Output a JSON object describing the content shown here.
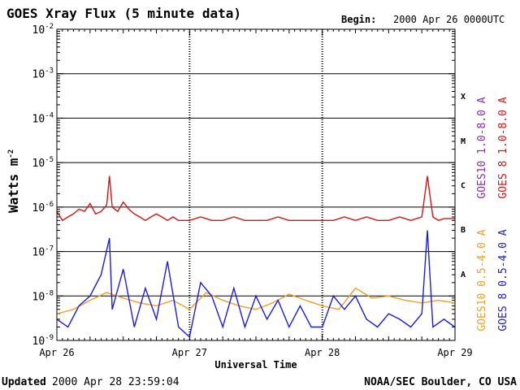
{
  "header": {
    "title": "GOES Xray Flux (5 minute data)",
    "begin_label": "Begin:",
    "begin_value": "2000 Apr 26 0000UTC"
  },
  "footer": {
    "updated_label": "Updated",
    "updated_value": "2000 Apr 28 23:59:04",
    "credit": "NOAA/SEC Boulder, CO USA"
  },
  "chart_data": {
    "type": "line",
    "title": "GOES Xray Flux (5 minute data)",
    "xlabel": "Universal Time",
    "ylabel": "Watts m",
    "ylabel_sup": "-2",
    "y_scale": "log",
    "ylim": [
      1e-09,
      0.01
    ],
    "xlim": [
      "2000-04-26",
      "2000-04-29"
    ],
    "x_ticks": [
      "Apr 26",
      "Apr 27",
      "Apr 28",
      "Apr 29"
    ],
    "y_ticks": [
      {
        "base": "10",
        "exp": "-9"
      },
      {
        "base": "10",
        "exp": "-8"
      },
      {
        "base": "10",
        "exp": "-7"
      },
      {
        "base": "10",
        "exp": "-6"
      },
      {
        "base": "10",
        "exp": "-5"
      },
      {
        "base": "10",
        "exp": "-4"
      },
      {
        "base": "10",
        "exp": "-3"
      },
      {
        "base": "10",
        "exp": "-2"
      }
    ],
    "flare_classes": [
      "A",
      "B",
      "C",
      "M",
      "X"
    ],
    "legend": [
      {
        "name": "GOES10 1.0-8.0 A",
        "color": "#8b2fa8"
      },
      {
        "name": "GOES 8 1.0-8.0 A",
        "color": "#e01010"
      },
      {
        "name": "GOES10 0.5-4.0 A",
        "color": "#f0a020"
      },
      {
        "name": "GOES 8 0.5-4.0 A",
        "color": "#1a1aee"
      }
    ],
    "series": [
      {
        "name": "GOES 8 1.0-8.0 A",
        "color": "#e01010",
        "x": [
          "2000-04-26 00:00",
          "2000-04-26 01:00",
          "2000-04-26 02:00",
          "2000-04-26 03:00",
          "2000-04-26 04:00",
          "2000-04-26 05:00",
          "2000-04-26 06:00",
          "2000-04-26 07:00",
          "2000-04-26 08:00",
          "2000-04-26 09:00",
          "2000-04-26 09:30",
          "2000-04-26 10:00",
          "2000-04-26 11:00",
          "2000-04-26 12:00",
          "2000-04-26 13:00",
          "2000-04-26 14:00",
          "2000-04-26 15:00",
          "2000-04-26 16:00",
          "2000-04-26 17:00",
          "2000-04-26 18:00",
          "2000-04-26 19:00",
          "2000-04-26 20:00",
          "2000-04-26 21:00",
          "2000-04-26 22:00",
          "2000-04-26 23:59",
          "2000-04-27 00:00",
          "2000-04-27 02:00",
          "2000-04-27 04:00",
          "2000-04-27 06:00",
          "2000-04-27 08:00",
          "2000-04-27 10:00",
          "2000-04-27 12:00",
          "2000-04-27 14:00",
          "2000-04-27 16:00",
          "2000-04-27 18:00",
          "2000-04-27 20:00",
          "2000-04-27 22:00",
          "2000-04-27 23:59",
          "2000-04-28 00:00",
          "2000-04-28 02:00",
          "2000-04-28 04:00",
          "2000-04-28 06:00",
          "2000-04-28 08:00",
          "2000-04-28 10:00",
          "2000-04-28 12:00",
          "2000-04-28 14:00",
          "2000-04-28 16:00",
          "2000-04-28 18:00",
          "2000-04-28 19:00",
          "2000-04-28 20:00",
          "2000-04-28 21:00",
          "2000-04-28 22:00",
          "2000-04-28 23:59"
        ],
        "y": [
          8e-07,
          5e-07,
          6e-07,
          7e-07,
          9e-07,
          8e-07,
          1.2e-06,
          7e-07,
          8e-07,
          1.1e-06,
          5e-06,
          1e-06,
          8e-07,
          1.3e-06,
          9e-07,
          7e-07,
          6e-07,
          5e-07,
          6e-07,
          7e-07,
          6e-07,
          5e-07,
          6e-07,
          5e-07,
          5e-07,
          5e-07,
          6e-07,
          5e-07,
          5e-07,
          6e-07,
          5e-07,
          5e-07,
          5e-07,
          6e-07,
          5e-07,
          5e-07,
          5e-07,
          5e-07,
          5e-07,
          5e-07,
          6e-07,
          5e-07,
          6e-07,
          5e-07,
          5e-07,
          6e-07,
          5e-07,
          6e-07,
          5e-06,
          6e-07,
          5e-07,
          5.5e-07,
          5.5e-07
        ]
      },
      {
        "name": "GOES10 0.5-4.0 A",
        "color": "#f0a020",
        "x": [
          "2000-04-26 00:00",
          "2000-04-26 03:00",
          "2000-04-26 06:00",
          "2000-04-26 09:00",
          "2000-04-26 12:00",
          "2000-04-26 15:00",
          "2000-04-26 18:00",
          "2000-04-26 21:00",
          "2000-04-27 00:00",
          "2000-04-27 03:00",
          "2000-04-27 06:00",
          "2000-04-27 09:00",
          "2000-04-27 12:00",
          "2000-04-27 15:00",
          "2000-04-27 18:00",
          "2000-04-27 21:00",
          "2000-04-28 00:00",
          "2000-04-28 03:00",
          "2000-04-28 06:00",
          "2000-04-28 09:00",
          "2000-04-28 12:00",
          "2000-04-28 15:00",
          "2000-04-28 18:00",
          "2000-04-28 21:00",
          "2000-04-28 23:59"
        ],
        "y": [
          4e-09,
          5e-09,
          8e-09,
          1.2e-08,
          9e-09,
          7e-09,
          6e-09,
          8e-09,
          5e-09,
          1.2e-08,
          8e-09,
          6e-09,
          5e-09,
          7e-09,
          1.1e-08,
          8e-09,
          6e-09,
          5e-09,
          1.5e-08,
          9e-09,
          1e-08,
          8e-09,
          7e-09,
          8e-09,
          7e-09
        ]
      },
      {
        "name": "GOES 8 0.5-4.0 A",
        "color": "#1a1aee",
        "x": [
          "2000-04-26 00:00",
          "2000-04-26 02:00",
          "2000-04-26 04:00",
          "2000-04-26 06:00",
          "2000-04-26 08:00",
          "2000-04-26 09:30",
          "2000-04-26 10:00",
          "2000-04-26 12:00",
          "2000-04-26 14:00",
          "2000-04-26 16:00",
          "2000-04-26 18:00",
          "2000-04-26 20:00",
          "2000-04-26 22:00",
          "2000-04-27 00:00",
          "2000-04-27 02:00",
          "2000-04-27 04:00",
          "2000-04-27 06:00",
          "2000-04-27 08:00",
          "2000-04-27 10:00",
          "2000-04-27 12:00",
          "2000-04-27 14:00",
          "2000-04-27 16:00",
          "2000-04-27 18:00",
          "2000-04-27 20:00",
          "2000-04-27 22:00",
          "2000-04-28 00:00",
          "2000-04-28 02:00",
          "2000-04-28 04:00",
          "2000-04-28 06:00",
          "2000-04-28 08:00",
          "2000-04-28 10:00",
          "2000-04-28 12:00",
          "2000-04-28 14:00",
          "2000-04-28 16:00",
          "2000-04-28 18:00",
          "2000-04-28 19:00",
          "2000-04-28 20:00",
          "2000-04-28 22:00",
          "2000-04-28 23:59"
        ],
        "y": [
          3e-09,
          2e-09,
          6e-09,
          1e-08,
          3e-08,
          2e-07,
          5e-09,
          4e-08,
          2e-09,
          1.5e-08,
          3e-09,
          6e-08,
          2e-09,
          1.2e-09,
          2e-08,
          1e-08,
          2e-09,
          1.5e-08,
          2e-09,
          1e-08,
          3e-09,
          8e-09,
          2e-09,
          6e-09,
          2e-09,
          2e-09,
          1e-08,
          5e-09,
          1e-08,
          3e-09,
          2e-09,
          4e-09,
          3e-09,
          2e-09,
          4e-09,
          3e-07,
          2e-09,
          3e-09,
          2e-09
        ]
      }
    ]
  }
}
